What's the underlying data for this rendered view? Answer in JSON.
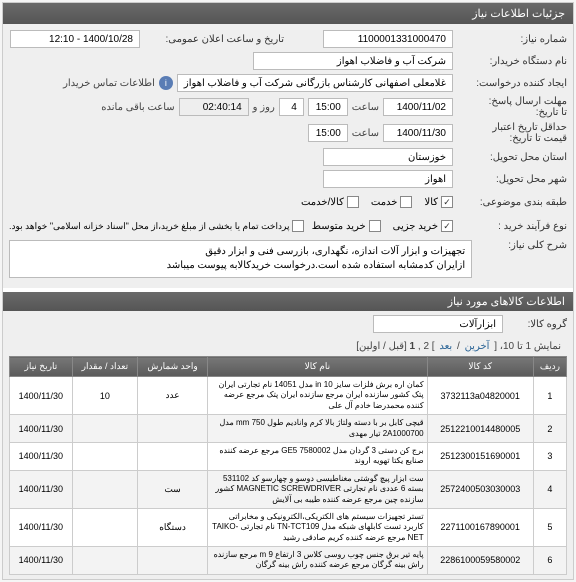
{
  "panel_title": "جزئیات اطلاعات نیاز",
  "form": {
    "need_no_label": "شماره نیاز:",
    "need_no": "1100001331000470",
    "announce_label": "تاریخ و ساعت اعلان عمومی:",
    "announce_value": "1400/10/28 - 12:10",
    "org_label": "نام دستگاه خریدار:",
    "org_value": "شرکت آب و فاضلاب اهواز",
    "creator_label": "ایجاد کننده درخواست:",
    "creator_value": "غلامعلی اصفهانی کارشناس بازرگانی شرکت آب و فاضلاب اهواز",
    "contact_label": "اطلاعات تماس خریدار",
    "deadline_label": "مهلت ارسال پاسخ:",
    "deadline_date_label": "تا تاریخ:",
    "deadline_date": "1400/11/02",
    "time_label": "ساعت",
    "deadline_time": "15:00",
    "days_label": "روز و",
    "days_value": "4",
    "remain_time": "02:40:14",
    "remain_label": "ساعت باقی مانده",
    "validity_label": "حداقل تاریخ اعتبار",
    "validity_sub": "قیمت تا تاریخ:",
    "validity_date": "1400/11/30",
    "validity_time": "15:00",
    "province_label": "استان محل تحویل:",
    "province": "خوزستان",
    "city_label": "شهر محل تحویل:",
    "city": "اهواز",
    "class_label": "طبقه بندی موضوعی:",
    "class_items": [
      {
        "label": "کالا",
        "checked": true
      },
      {
        "label": "خدمت",
        "checked": false
      },
      {
        "label": "کالا/خدمت",
        "checked": false
      }
    ],
    "proc_label": "نوع فرآیند خرید :",
    "proc_items": [
      {
        "label": "خرید جزیی",
        "checked": true
      },
      {
        "label": "خرید متوسط",
        "checked": false
      }
    ],
    "pay_note": "پرداخت تمام یا بخشی از مبلغ خرید،از محل \"اسناد خزانه اسلامی\" خواهد بود.",
    "pay_checked": false,
    "desc_label": "شرح کلی نیاز:",
    "desc_value": "تجهیزات و ابزار آلات اندازه، نگهداری، بازرسی فنی و ابزار دقیق\nازایران کدمشابه استفاده شده است.درخواست خریدکالابه پیوست میباشد"
  },
  "goods_section_title": "اطلاعات کالاهای مورد نیاز",
  "goods_group_label": "گروه کالا:",
  "goods_group_value": "ابزارآلات",
  "pager": {
    "text_prefix": "نمایش 1 تا 10، [ ",
    "last": "آخرین",
    "sep1": " / ",
    "next": "بعد",
    "mid": " ] 2 ,",
    "current": "1",
    "tail": " [قبل / اولین]"
  },
  "table": {
    "headers": [
      "ردیف",
      "کد کالا",
      "نام کالا",
      "واحد شمارش",
      "تعداد / مقدار",
      "تاریخ نیاز"
    ],
    "rows": [
      {
        "n": "1",
        "code": "3732113a04820001",
        "desc": "کمان اره برش فلزات سایز 10 in مدل 14051 نام تجارتی ایران پتک کشور سازنده ایران مرجع سازنده ایران پتک مرجع عرضه کننده محمدرضا خادم آل علی",
        "unit": "عدد",
        "qty": "10",
        "date": "1400/11/30"
      },
      {
        "n": "2",
        "code": "2512210014480005",
        "desc": "قیچی کابل بر با دسته ولتاژ بالا کرم وانادیم طول mm 750 مدل 2A1000700 تیار مهدی",
        "unit": "",
        "qty": "",
        "date": "1400/11/30"
      },
      {
        "n": "3",
        "code": "2512300151690001",
        "desc": "برج کن دستی 3 گردان مدل GE5 7580002 مرجع عرضه کننده صنایع یکتا تهویه اروند",
        "unit": "",
        "qty": "",
        "date": "1400/11/30"
      },
      {
        "n": "4",
        "code": "2572400503030003",
        "desc": "ست ابزار پیچ گوشتی مغناطیسی دوسو و چهارسو کد 531102 بسته 6 عددی نام تجارتی MAGNETIC SCREWDRIVER کشور سازنده چین مرجع عرضه کننده طیبه بی آلایش",
        "unit": "ست",
        "qty": "",
        "date": "1400/11/30"
      },
      {
        "n": "5",
        "code": "2271100167890001",
        "desc": "تستر تجهیزات سیستم های الکتریکی،الکترونیکی و مخابراتی کاربرد تست کابلهای شبکه مدل TN-TCT109 نام تجارتی TAIKO-NET مرجع عرضه کننده کریم صادقی رشید",
        "unit": "دستگاه",
        "qty": "",
        "date": "1400/11/30"
      },
      {
        "n": "6",
        "code": "2286100059580002",
        "desc": "پایه تیر برق جنس چوب روسی کلاس 3 ارتفاع 9 m مرجع سازنده راش بینه گرگان مرجع عرضه کننده راش بینه گرگان",
        "unit": "",
        "qty": "",
        "date": "1400/11/30"
      }
    ]
  }
}
